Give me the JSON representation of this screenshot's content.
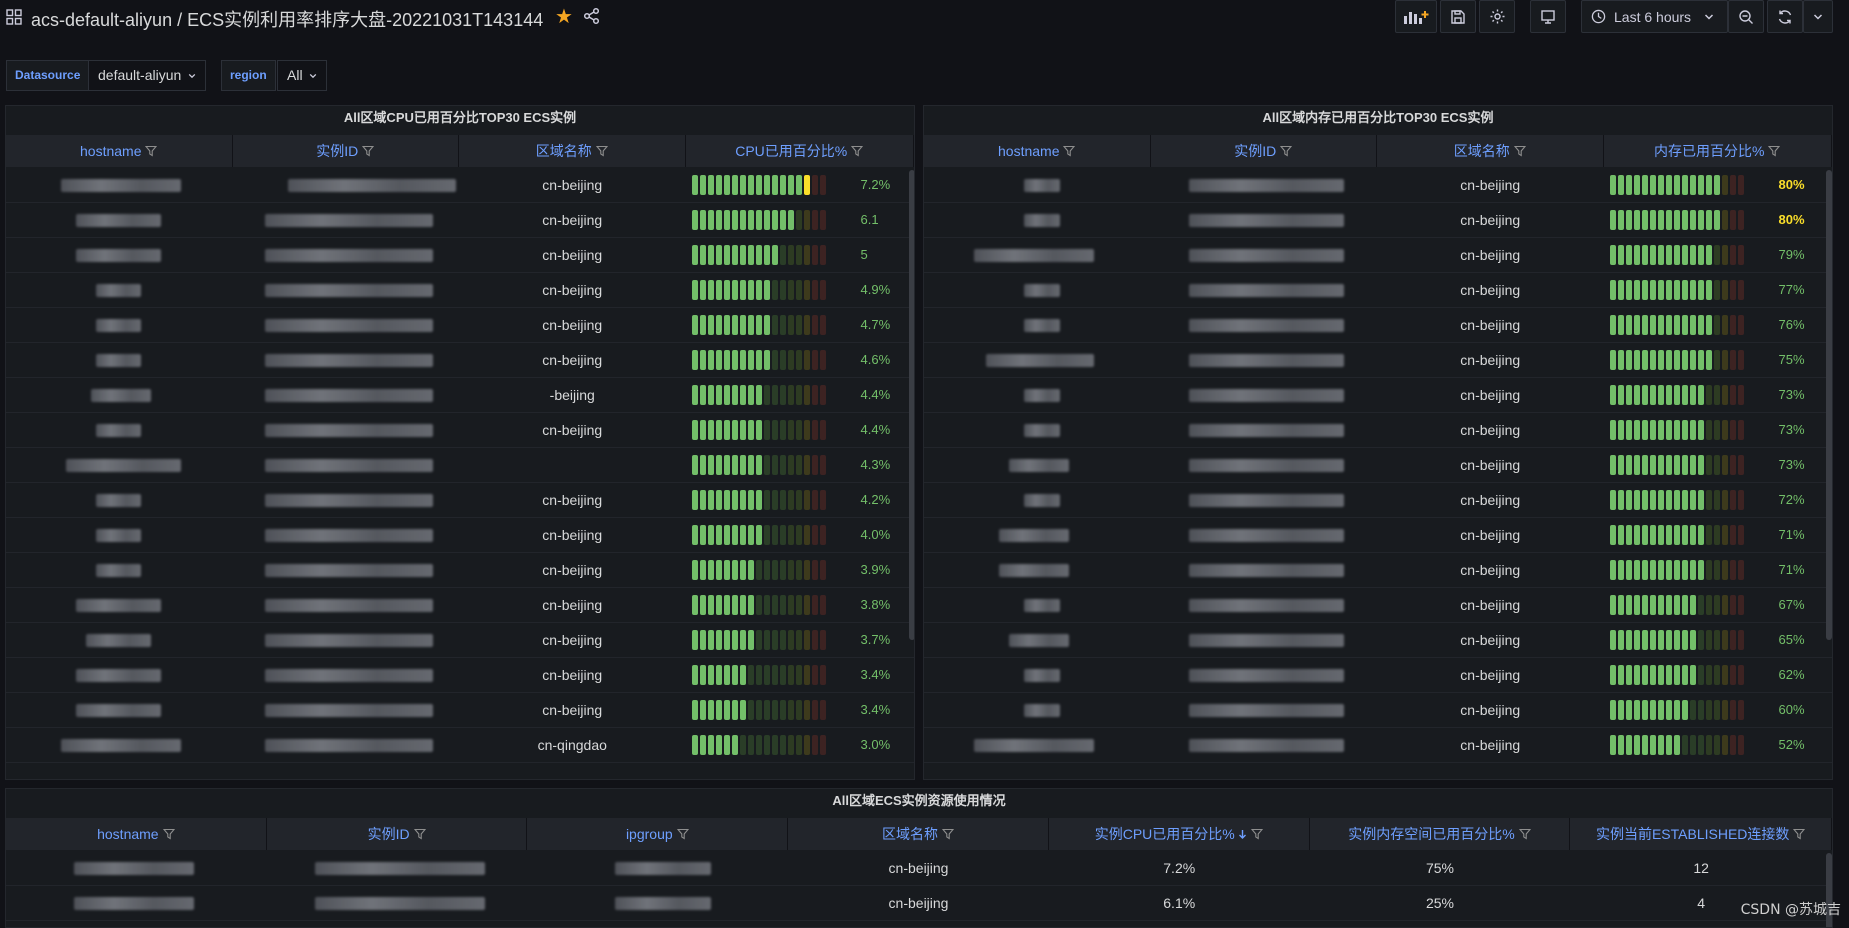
{
  "header": {
    "title": "acs-default-aliyun / ECS实例利用率排序大盘-20221031T143144",
    "time_range": "Last 6 hours"
  },
  "variables": [
    {
      "label": "Datasource",
      "value": "default-aliyun"
    },
    {
      "label": "region",
      "value": "All"
    }
  ],
  "cpu_panel": {
    "title": "All区域CPU已用百分比TOP30 ECS实例",
    "columns": [
      "hostname",
      "实例ID",
      "区域名称",
      "CPU已用百分比%"
    ],
    "rows": [
      {
        "region": "cn-beijing",
        "value": 0.072,
        "label": "7.2%"
      },
      {
        "region": "cn-beijing",
        "value": 0.061,
        "label": "6.1"
      },
      {
        "region": "cn-beijing",
        "value": 0.05,
        "label": "5"
      },
      {
        "region": "cn-beijing",
        "value": 0.049,
        "label": "4.9%"
      },
      {
        "region": "cn-beijing",
        "value": 0.047,
        "label": "4.7%"
      },
      {
        "region": "cn-beijing",
        "value": 0.046,
        "label": "4.6%"
      },
      {
        "region": "-beijing",
        "value": 0.044,
        "label": "4.4%"
      },
      {
        "region": "cn-beijing",
        "value": 0.044,
        "label": "4.4%"
      },
      {
        "region": "",
        "value": 0.043,
        "label": "4.3%"
      },
      {
        "region": "cn-beijing",
        "value": 0.042,
        "label": "4.2%"
      },
      {
        "region": "cn-beijing",
        "value": 0.04,
        "label": "4.0%"
      },
      {
        "region": "cn-beijing",
        "value": 0.039,
        "label": "3.9%"
      },
      {
        "region": "cn-beijing",
        "value": 0.038,
        "label": "3.8%"
      },
      {
        "region": "cn-beijing",
        "value": 0.037,
        "label": "3.7%"
      },
      {
        "region": "cn-beijing",
        "value": 0.034,
        "label": "3.4%"
      },
      {
        "region": "cn-beijing",
        "value": 0.034,
        "label": "3.4%"
      },
      {
        "region": "cn-qingdao",
        "value": 0.03,
        "label": "3.0%"
      }
    ]
  },
  "mem_panel": {
    "title": "All区域内存已用百分比TOP30 ECS实例",
    "columns": [
      "hostname",
      "实例ID",
      "区域名称",
      "内存已用百分比%"
    ],
    "rows": [
      {
        "region": "cn-beijing",
        "value": 0.8,
        "label": "80%"
      },
      {
        "region": "cn-beijing",
        "value": 0.8,
        "label": "80%"
      },
      {
        "region": "cn-beijing",
        "value": 0.79,
        "label": "79%"
      },
      {
        "region": "cn-beijing",
        "value": 0.77,
        "label": "77%"
      },
      {
        "region": "cn-beijing",
        "value": 0.76,
        "label": "76%"
      },
      {
        "region": "cn-beijing",
        "value": 0.75,
        "label": "75%"
      },
      {
        "region": "cn-beijing",
        "value": 0.73,
        "label": "73%"
      },
      {
        "region": "cn-beijing",
        "value": 0.73,
        "label": "73%"
      },
      {
        "region": "cn-beijing",
        "value": 0.73,
        "label": "73%"
      },
      {
        "region": "cn-beijing",
        "value": 0.72,
        "label": "72%"
      },
      {
        "region": "cn-beijing",
        "value": 0.71,
        "label": "71%"
      },
      {
        "region": "cn-beijing",
        "value": 0.71,
        "label": "71%"
      },
      {
        "region": "cn-beijing",
        "value": 0.67,
        "label": "67%"
      },
      {
        "region": "cn-beijing",
        "value": 0.65,
        "label": "65%"
      },
      {
        "region": "cn-beijing",
        "value": 0.62,
        "label": "62%"
      },
      {
        "region": "cn-beijing",
        "value": 0.6,
        "label": "60%"
      },
      {
        "region": "cn-beijing",
        "value": 0.52,
        "label": "52%"
      }
    ]
  },
  "usage_panel": {
    "title": "All区域ECS实例资源使用情况",
    "columns": [
      "hostname",
      "实例ID",
      "ipgroup",
      "区域名称",
      "实例CPU已用百分比%",
      "实例内存空间已用百分比%",
      "实例当前ESTABLISHED连接数"
    ],
    "rows": [
      {
        "region": "cn-beijing",
        "cpu": "7.2%",
        "mem": "75%",
        "conn": "12"
      },
      {
        "region": "cn-beijing",
        "cpu": "6.1%",
        "mem": "25%",
        "conn": "4"
      }
    ]
  },
  "watermark": "CSDN @苏城吉",
  "colors": {
    "accent": "#6e9fff",
    "good": "#73bf69",
    "warn": "#fade2a",
    "bad": "#c4162a"
  }
}
